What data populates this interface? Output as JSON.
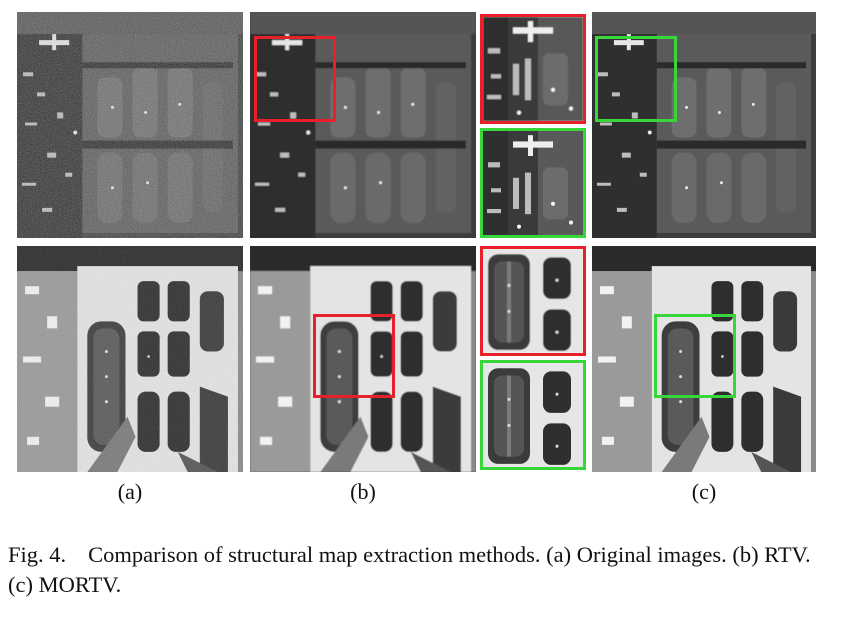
{
  "labels": {
    "a": "(a)",
    "b": "(b)",
    "c": "(c)"
  },
  "caption": {
    "figure_number": "Fig. 4.",
    "text": "Comparison of structural map extraction methods. (a) Original images. (b) RTV. (c) MORTV."
  },
  "colors": {
    "rtv_box": "#e8202a",
    "mortv_box": "#39d63a",
    "background": "#ffffff"
  }
}
